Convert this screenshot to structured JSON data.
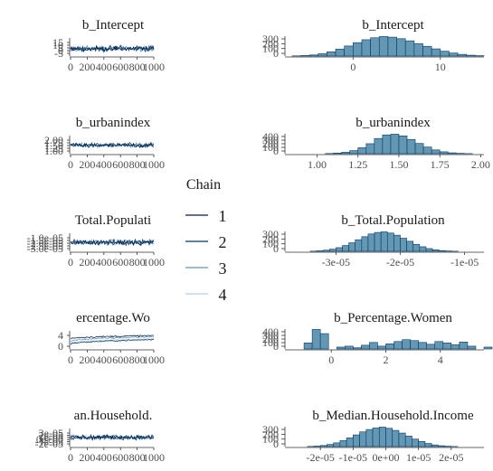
{
  "chart_data": [
    {
      "type": "line",
      "title": "b_Intercept",
      "shown_title": "b_Intercept",
      "x_tick_labels": [
        "0",
        "200",
        "400",
        "600",
        "800",
        "1000"
      ],
      "xlim": [
        0,
        1000
      ],
      "y_tick_labels": [
        "-5",
        "0",
        "5",
        "10",
        "15"
      ],
      "ylim": [
        -6,
        16
      ],
      "center": 2.5,
      "spread": 3.5,
      "series": [
        {
          "name": "1"
        },
        {
          "name": "2"
        },
        {
          "name": "3"
        },
        {
          "name": "4"
        }
      ]
    },
    {
      "type": "bar",
      "title": "b_Intercept",
      "x_tick_labels": [
        "0",
        "10"
      ],
      "x_ticks": [
        0,
        10
      ],
      "xlim": [
        -7.5,
        15
      ],
      "y_tick_labels": [
        "0",
        "100",
        "200",
        "300"
      ],
      "bin_start": -7,
      "bin_width": 1,
      "values": [
        3,
        8,
        18,
        38,
        70,
        115,
        165,
        220,
        268,
        300,
        320,
        310,
        285,
        250,
        205,
        160,
        118,
        80,
        50,
        28,
        14,
        6
      ]
    },
    {
      "type": "line",
      "title": "b_urbanindex",
      "shown_title": "b_urbanindex",
      "x_tick_labels": [
        "0",
        "200",
        "400",
        "600",
        "800",
        "1000"
      ],
      "xlim": [
        0,
        1000
      ],
      "y_tick_labels": [
        "1.00",
        "1.25",
        "1.50",
        "1.75",
        "2.00"
      ],
      "ylim": [
        0.95,
        2.05
      ],
      "center": 1.45,
      "spread": 0.15,
      "series": [
        {
          "name": "1"
        },
        {
          "name": "2"
        },
        {
          "name": "3"
        },
        {
          "name": "4"
        }
      ]
    },
    {
      "type": "bar",
      "title": "b_urbanindex",
      "x_tick_labels": [
        "1.00",
        "1.25",
        "1.50",
        "1.75",
        "2.00"
      ],
      "x_ticks": [
        1.0,
        1.25,
        1.5,
        1.75,
        2.0
      ],
      "xlim": [
        0.82,
        2.02
      ],
      "y_tick_labels": [
        "0",
        "100",
        "200",
        "300",
        "400"
      ],
      "bin_start": 1.05,
      "bin_width": 0.05,
      "values": [
        4,
        12,
        30,
        65,
        125,
        210,
        320,
        395,
        410,
        375,
        300,
        215,
        140,
        80,
        40,
        18,
        7,
        2
      ]
    },
    {
      "type": "line",
      "title": "b_Total.Population",
      "shown_title": "Total.Populati",
      "x_tick_labels": [
        "0",
        "200",
        "400",
        "600",
        "800",
        "1000"
      ],
      "xlim": [
        0,
        1000
      ],
      "y_tick_labels": [
        "-3.0e-05",
        "-2.5e-05",
        "-2.0e-05",
        "-1.5e-05",
        "-1.0e-05"
      ],
      "ylim": [
        -3.5,
        -0.7
      ],
      "center": -2.1,
      "spread": 0.45,
      "series": [
        {
          "name": "1"
        },
        {
          "name": "2"
        },
        {
          "name": "3"
        },
        {
          "name": "4"
        }
      ]
    },
    {
      "type": "bar",
      "title": "b_Total.Population",
      "x_tick_labels": [
        "-3e-05",
        "-2e-05",
        "-1e-05"
      ],
      "x_ticks": [
        -3,
        -2,
        -1
      ],
      "xlim": [
        -3.75,
        -0.7
      ],
      "y_tick_labels": [
        "0",
        "100",
        "200",
        "300"
      ],
      "bin_start": -3.4,
      "bin_width": 0.1,
      "values": [
        3,
        8,
        18,
        35,
        60,
        95,
        140,
        190,
        240,
        285,
        310,
        320,
        300,
        265,
        215,
        165,
        115,
        75,
        45,
        25,
        12,
        6,
        2
      ]
    },
    {
      "type": "line",
      "title": "b_Percentage.Women",
      "shown_title": "ercentage.Wo",
      "x_tick_labels": [
        "0",
        "200",
        "400",
        "600",
        "800",
        "1000"
      ],
      "xlim": [
        0,
        1000
      ],
      "y_tick_labels": [
        "0",
        "4"
      ],
      "ylim": [
        -2,
        6
      ],
      "series": [
        {
          "name": "1",
          "start": 0.2,
          "end": 2.6,
          "noise": 0.25
        },
        {
          "name": "2",
          "start": 1.3,
          "end": 3.8,
          "noise": 0.3
        },
        {
          "name": "3",
          "start": -0.3,
          "end": 2.2,
          "noise": 0.25
        },
        {
          "name": "4",
          "start": 2.8,
          "end": 4.4,
          "noise": 0.3
        }
      ]
    },
    {
      "type": "bar",
      "title": "b_Percentage.Women",
      "x_tick_labels": [
        "0",
        "2",
        "4"
      ],
      "x_ticks": [
        0,
        2,
        4
      ],
      "xlim": [
        -1.6,
        5.6
      ],
      "y_tick_labels": [
        "0",
        "100",
        "200",
        "300",
        "400"
      ],
      "bin_start": -1.0,
      "bin_width": 0.3,
      "values": [
        130,
        420,
        330,
        0,
        40,
        60,
        25,
        80,
        140,
        60,
        110,
        160,
        200,
        180,
        140,
        100,
        160,
        130,
        90,
        150,
        60,
        0,
        40
      ]
    },
    {
      "type": "line",
      "title": "b_Median.Household.Income",
      "shown_title": "an.Household.",
      "x_tick_labels": [
        "0",
        "200",
        "400",
        "600",
        "800",
        "1000"
      ],
      "xlim": [
        0,
        1000
      ],
      "y_tick_labels": [
        "-2e-05",
        "-1e-05",
        "0e+00",
        "1e-05",
        "2e-05",
        "3e-05"
      ],
      "ylim": [
        -3,
        3.5
      ],
      "center": 0.4,
      "spread": 0.9,
      "series": [
        {
          "name": "1"
        },
        {
          "name": "2"
        },
        {
          "name": "3"
        },
        {
          "name": "4"
        }
      ]
    },
    {
      "type": "bar",
      "title": "b_Median.Household.Income",
      "x_tick_labels": [
        "-2e-05",
        "-1e-05",
        "0e+00",
        "1e-05",
        "2e-05"
      ],
      "x_ticks": [
        -2,
        -1,
        0,
        1,
        2
      ],
      "xlim": [
        -3.0,
        3.0
      ],
      "y_tick_labels": [
        "0",
        "100",
        "200",
        "300"
      ],
      "bin_start": -2.4,
      "bin_width": 0.2,
      "values": [
        3,
        8,
        18,
        35,
        62,
        100,
        145,
        195,
        245,
        285,
        310,
        325,
        305,
        270,
        225,
        175,
        125,
        85,
        52,
        28,
        14,
        6,
        2
      ]
    }
  ],
  "legend": {
    "title": "Chain",
    "labels": [
      "1",
      "2",
      "3",
      "4"
    ],
    "colors": [
      "#011f4b",
      "#03396c",
      "#6497b1",
      "#b3cde0"
    ]
  },
  "colors": {
    "bar_fill": "#6497b1",
    "bar_stroke": "#03396c",
    "axis": "#333333"
  }
}
